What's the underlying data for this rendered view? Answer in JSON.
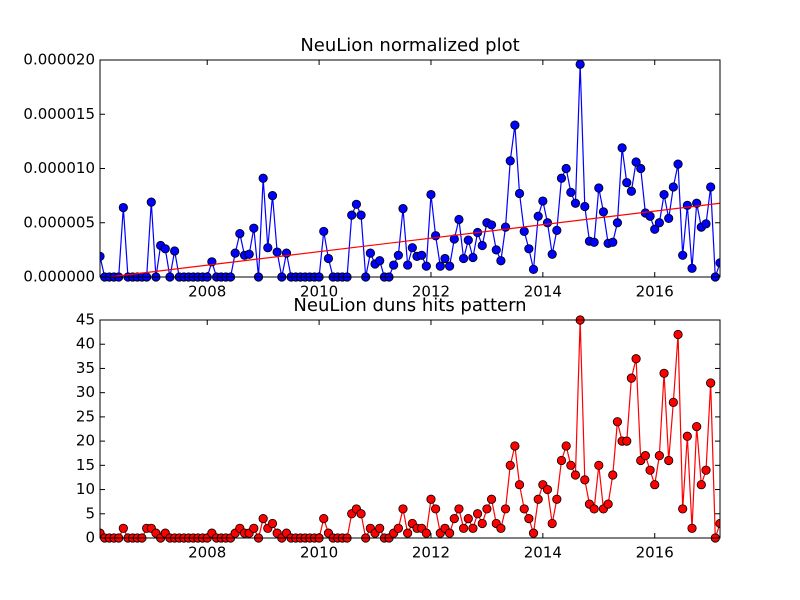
{
  "chart_data": [
    {
      "type": "line",
      "title": "NeuLion normalized plot",
      "x": [
        2006.083,
        2006.167,
        2006.25,
        2006.333,
        2006.417,
        2006.5,
        2006.583,
        2006.667,
        2006.75,
        2006.833,
        2006.917,
        2007.0,
        2007.083,
        2007.167,
        2007.25,
        2007.333,
        2007.417,
        2007.5,
        2007.583,
        2007.667,
        2007.75,
        2007.833,
        2007.917,
        2008.0,
        2008.083,
        2008.167,
        2008.25,
        2008.333,
        2008.417,
        2008.5,
        2008.583,
        2008.667,
        2008.75,
        2008.833,
        2008.917,
        2009.0,
        2009.083,
        2009.167,
        2009.25,
        2009.333,
        2009.417,
        2009.5,
        2009.583,
        2009.667,
        2009.75,
        2009.833,
        2009.917,
        2010.0,
        2010.083,
        2010.167,
        2010.25,
        2010.333,
        2010.417,
        2010.5,
        2010.583,
        2010.667,
        2010.75,
        2010.833,
        2010.917,
        2011.0,
        2011.083,
        2011.167,
        2011.25,
        2011.333,
        2011.417,
        2011.5,
        2011.583,
        2011.667,
        2011.75,
        2011.833,
        2011.917,
        2012.0,
        2012.083,
        2012.167,
        2012.25,
        2012.333,
        2012.417,
        2012.5,
        2012.583,
        2012.667,
        2012.75,
        2012.833,
        2012.917,
        2013.0,
        2013.083,
        2013.167,
        2013.25,
        2013.333,
        2013.417,
        2013.5,
        2013.583,
        2013.667,
        2013.75,
        2013.833,
        2013.917,
        2014.0,
        2014.083,
        2014.167,
        2014.25,
        2014.333,
        2014.417,
        2014.5,
        2014.583,
        2014.667,
        2014.75,
        2014.833,
        2014.917,
        2015.0,
        2015.083,
        2015.167,
        2015.25,
        2015.333,
        2015.417,
        2015.5,
        2015.583,
        2015.667,
        2015.75,
        2015.833,
        2015.917,
        2016.0,
        2016.083,
        2016.167,
        2016.25,
        2016.333,
        2016.417,
        2016.5,
        2016.583,
        2016.667,
        2016.75,
        2016.833,
        2016.917,
        2017.0,
        2017.083,
        2017.167
      ],
      "series": [
        {
          "color": "#0000ff",
          "marker": true,
          "values": [
            1.9e-06,
            0,
            0,
            0,
            0,
            6.4e-06,
            0,
            0,
            0,
            0,
            0,
            6.9e-06,
            0,
            2.9e-06,
            2.6e-06,
            0,
            2.4e-06,
            0,
            0,
            0,
            0,
            0,
            0,
            0,
            1.4e-06,
            0,
            0,
            0,
            0,
            2.2e-06,
            4e-06,
            2e-06,
            2.1e-06,
            4.5e-06,
            0,
            9.1e-06,
            2.7e-06,
            7.5e-06,
            2.3e-06,
            0,
            2.2e-06,
            0,
            0,
            0,
            0,
            0,
            0,
            0,
            4.2e-06,
            1.7e-06,
            0,
            0,
            0,
            0,
            5.7e-06,
            6.7e-06,
            5.7e-06,
            0,
            2.2e-06,
            1.2e-06,
            1.5e-06,
            0,
            0,
            1.1e-06,
            2e-06,
            6.3e-06,
            1.1e-06,
            2.7e-06,
            1.9e-06,
            2e-06,
            1e-06,
            7.6e-06,
            3.8e-06,
            1e-06,
            1.7e-06,
            1e-06,
            3.5e-06,
            5.3e-06,
            1.7e-06,
            3.4e-06,
            1.8e-06,
            4.1e-06,
            2.9e-06,
            5e-06,
            4.8e-06,
            2.5e-06,
            1.5e-06,
            4.6e-06,
            1.07e-05,
            1.4e-05,
            7.7e-06,
            4.2e-06,
            2.6e-06,
            7e-07,
            5.6e-06,
            7e-06,
            5e-06,
            2.1e-06,
            4.3e-06,
            9.1e-06,
            1e-05,
            7.8e-06,
            6.8e-06,
            1.96e-05,
            6.5e-06,
            3.3e-06,
            3.2e-06,
            8.2e-06,
            6e-06,
            3.1e-06,
            3.2e-06,
            5e-06,
            1.19e-05,
            8.7e-06,
            7.9e-06,
            1.06e-05,
            1e-05,
            5.9e-06,
            5.6e-06,
            4.4e-06,
            5e-06,
            7.6e-06,
            5.4e-06,
            8.3e-06,
            1.04e-05,
            2e-06,
            6.6e-06,
            8e-07,
            6.8e-06,
            4.6e-06,
            4.9e-06,
            8.3e-06,
            0,
            1.3e-06
          ]
        },
        {
          "color": "#ff0000",
          "marker": false,
          "x": [
            2006.25,
            2017.167
          ],
          "values": [
            0,
            6.8e-06
          ]
        }
      ],
      "xlim": [
        2006.083,
        2017.167
      ],
      "xticks": [
        2008,
        2010,
        2012,
        2014,
        2016
      ],
      "ylim": [
        0,
        2e-05
      ],
      "yticks": [
        {
          "value": 0,
          "label": "0.000000"
        },
        {
          "value": 5e-06,
          "label": "0.000005"
        },
        {
          "value": 1e-05,
          "label": "0.000010"
        },
        {
          "value": 1.5e-05,
          "label": "0.000015"
        },
        {
          "value": 2e-05,
          "label": "0.000020"
        }
      ]
    },
    {
      "type": "line",
      "title": "NeuLion duns hits pattern",
      "x": [
        2006.083,
        2006.167,
        2006.25,
        2006.333,
        2006.417,
        2006.5,
        2006.583,
        2006.667,
        2006.75,
        2006.833,
        2006.917,
        2007.0,
        2007.083,
        2007.167,
        2007.25,
        2007.333,
        2007.417,
        2007.5,
        2007.583,
        2007.667,
        2007.75,
        2007.833,
        2007.917,
        2008.0,
        2008.083,
        2008.167,
        2008.25,
        2008.333,
        2008.417,
        2008.5,
        2008.583,
        2008.667,
        2008.75,
        2008.833,
        2008.917,
        2009.0,
        2009.083,
        2009.167,
        2009.25,
        2009.333,
        2009.417,
        2009.5,
        2009.583,
        2009.667,
        2009.75,
        2009.833,
        2009.917,
        2010.0,
        2010.083,
        2010.167,
        2010.25,
        2010.333,
        2010.417,
        2010.5,
        2010.583,
        2010.667,
        2010.75,
        2010.833,
        2010.917,
        2011.0,
        2011.083,
        2011.167,
        2011.25,
        2011.333,
        2011.417,
        2011.5,
        2011.583,
        2011.667,
        2011.75,
        2011.833,
        2011.917,
        2012.0,
        2012.083,
        2012.167,
        2012.25,
        2012.333,
        2012.417,
        2012.5,
        2012.583,
        2012.667,
        2012.75,
        2012.833,
        2012.917,
        2013.0,
        2013.083,
        2013.167,
        2013.25,
        2013.333,
        2013.417,
        2013.5,
        2013.583,
        2013.667,
        2013.75,
        2013.833,
        2013.917,
        2014.0,
        2014.083,
        2014.167,
        2014.25,
        2014.333,
        2014.417,
        2014.5,
        2014.583,
        2014.667,
        2014.75,
        2014.833,
        2014.917,
        2015.0,
        2015.083,
        2015.167,
        2015.25,
        2015.333,
        2015.417,
        2015.5,
        2015.583,
        2015.667,
        2015.75,
        2015.833,
        2015.917,
        2016.0,
        2016.083,
        2016.167,
        2016.25,
        2016.333,
        2016.417,
        2016.5,
        2016.583,
        2016.667,
        2016.75,
        2016.833,
        2016.917,
        2017.0,
        2017.083,
        2017.167
      ],
      "series": [
        {
          "color": "#ff0000",
          "marker": true,
          "values": [
            1,
            0,
            0,
            0,
            0,
            2,
            0,
            0,
            0,
            0,
            2,
            2,
            1,
            0,
            1,
            0,
            0,
            0,
            0,
            0,
            0,
            0,
            0,
            0,
            1,
            0,
            0,
            0,
            0,
            1,
            2,
            1,
            1,
            2,
            0,
            4,
            2,
            3,
            1,
            0,
            1,
            0,
            0,
            0,
            0,
            0,
            0,
            0,
            4,
            1,
            0,
            0,
            0,
            0,
            5,
            6,
            5,
            0,
            2,
            1,
            2,
            0,
            0,
            1,
            2,
            6,
            1,
            3,
            2,
            2,
            1,
            8,
            6,
            1,
            2,
            1,
            4,
            6,
            2,
            4,
            2,
            5,
            3,
            6,
            8,
            3,
            2,
            6,
            15,
            19,
            11,
            6,
            4,
            1,
            8,
            11,
            10,
            3,
            8,
            16,
            19,
            15,
            13,
            45,
            12,
            7,
            6,
            15,
            6,
            7,
            13,
            24,
            20,
            20,
            33,
            37,
            16,
            17,
            14,
            11,
            17,
            34,
            16,
            28,
            42,
            6,
            21,
            2,
            23,
            11,
            14,
            32,
            0,
            3
          ]
        }
      ],
      "xlim": [
        2006.083,
        2017.167
      ],
      "xticks": [
        2008,
        2010,
        2012,
        2014,
        2016
      ],
      "ylim": [
        0,
        45
      ],
      "yticks": [
        0,
        5,
        10,
        15,
        20,
        25,
        30,
        35,
        40,
        45
      ]
    }
  ]
}
